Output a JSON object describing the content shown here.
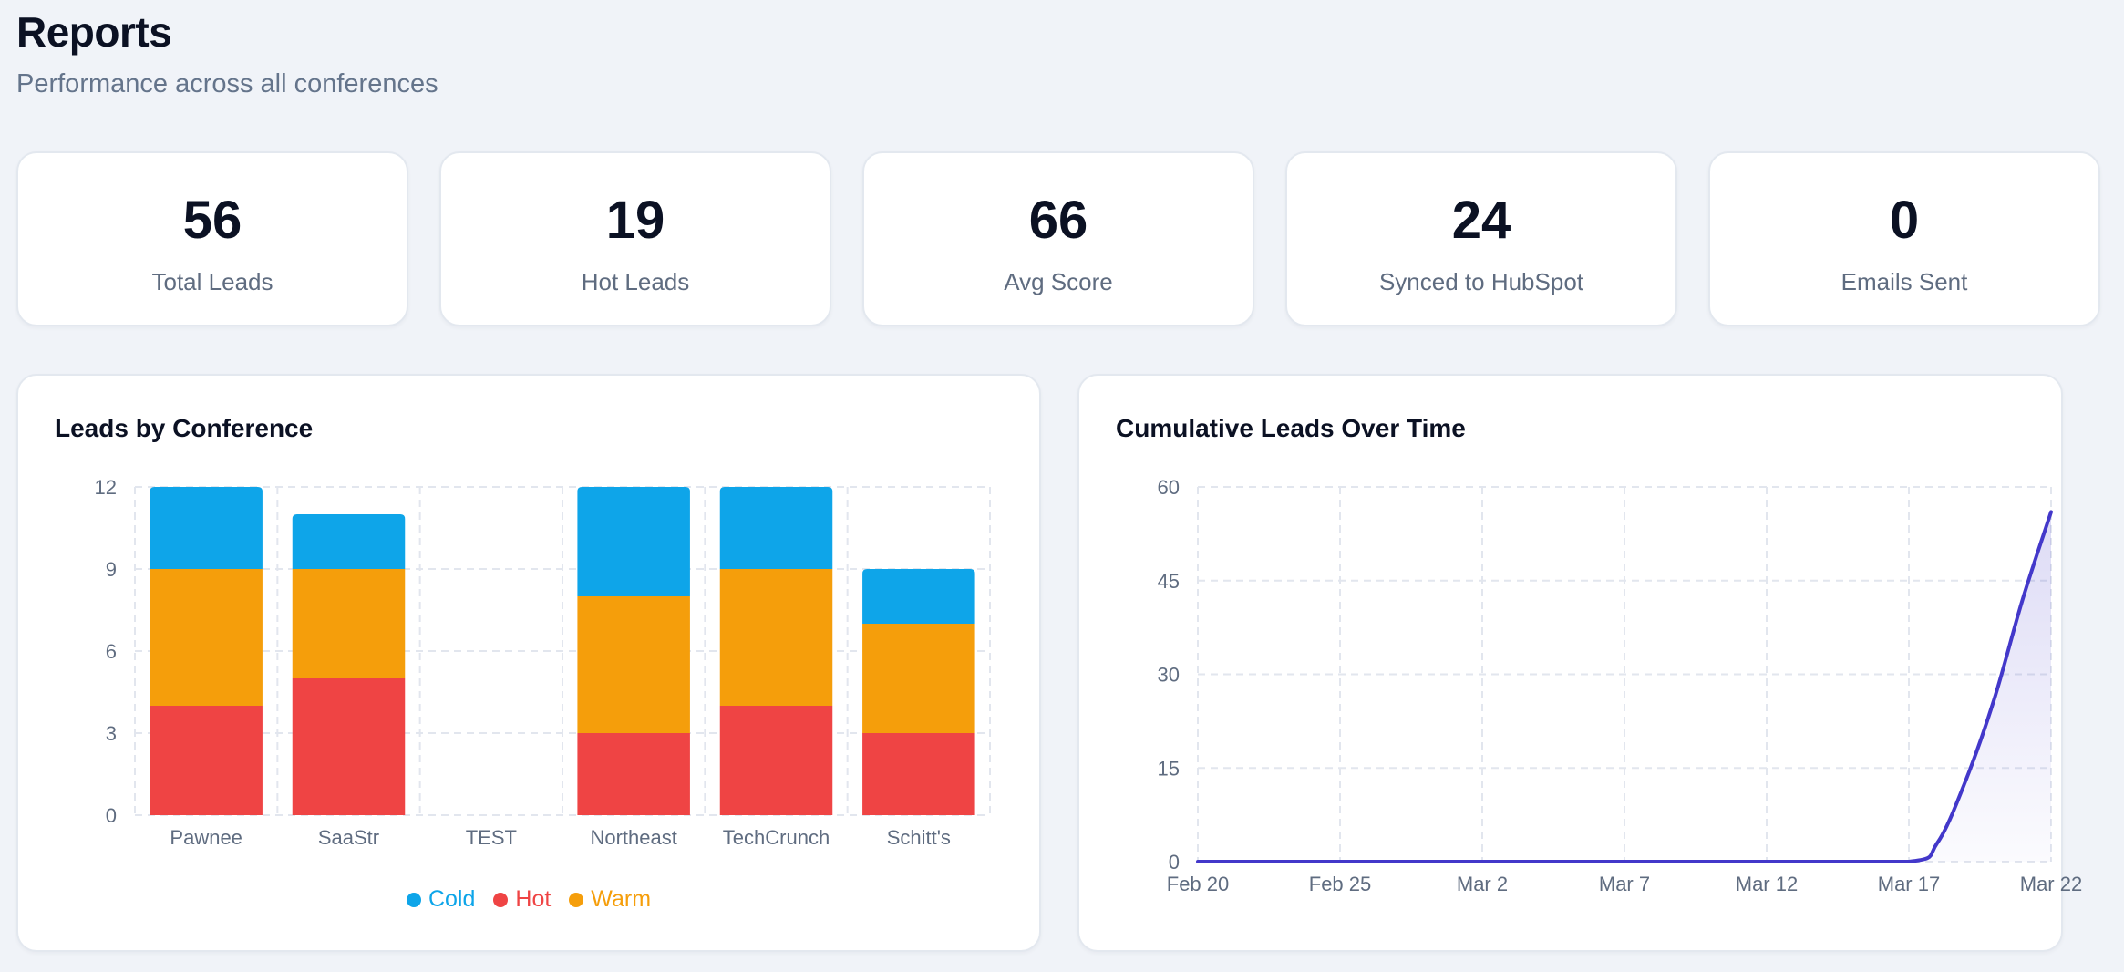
{
  "header": {
    "title": "Reports",
    "subtitle": "Performance across all conferences"
  },
  "stats": [
    {
      "value": "56",
      "label": "Total Leads"
    },
    {
      "value": "19",
      "label": "Hot Leads"
    },
    {
      "value": "66",
      "label": "Avg Score"
    },
    {
      "value": "24",
      "label": "Synced to HubSpot"
    },
    {
      "value": "0",
      "label": "Emails Sent"
    }
  ],
  "colors": {
    "cold": "#0ea5e9",
    "hot": "#ef4444",
    "warm": "#f59e0b",
    "line": "#4338ca"
  },
  "bar_panel": {
    "title": "Leads by Conference"
  },
  "line_panel": {
    "title": "Cumulative Leads Over Time"
  },
  "chart_data": [
    {
      "type": "bar",
      "title": "Leads by Conference",
      "stacked": true,
      "categories": [
        "Pawnee",
        "SaaStr",
        "TEST",
        "Northeast",
        "TechCrunch",
        "Schitt's"
      ],
      "series": [
        {
          "name": "Hot",
          "values": [
            4,
            5,
            0,
            3,
            4,
            3
          ]
        },
        {
          "name": "Warm",
          "values": [
            5,
            4,
            0,
            5,
            5,
            4
          ]
        },
        {
          "name": "Cold",
          "values": [
            3,
            2,
            0,
            4,
            3,
            2
          ]
        }
      ],
      "legend": [
        "Cold",
        "Hot",
        "Warm"
      ],
      "legend_position": "bottom",
      "ylim": [
        0,
        12
      ],
      "yticks": [
        0,
        3,
        6,
        9,
        12
      ],
      "grid": true
    },
    {
      "type": "area",
      "title": "Cumulative Leads Over Time",
      "x_ticks": [
        "Feb 20",
        "Feb 25",
        "Mar 2",
        "Mar 7",
        "Mar 12",
        "Mar 17",
        "Mar 22"
      ],
      "x": [
        "Feb 20",
        "Feb 25",
        "Mar 2",
        "Mar 7",
        "Mar 12",
        "Mar 17",
        "Mar 18",
        "Mar 19",
        "Mar 20",
        "Mar 21",
        "Mar 22"
      ],
      "y": [
        0,
        0,
        0,
        0,
        0,
        0,
        3,
        13,
        26,
        42,
        56
      ],
      "ylim": [
        0,
        60
      ],
      "yticks": [
        0,
        15,
        30,
        45,
        60
      ],
      "grid": true
    }
  ]
}
